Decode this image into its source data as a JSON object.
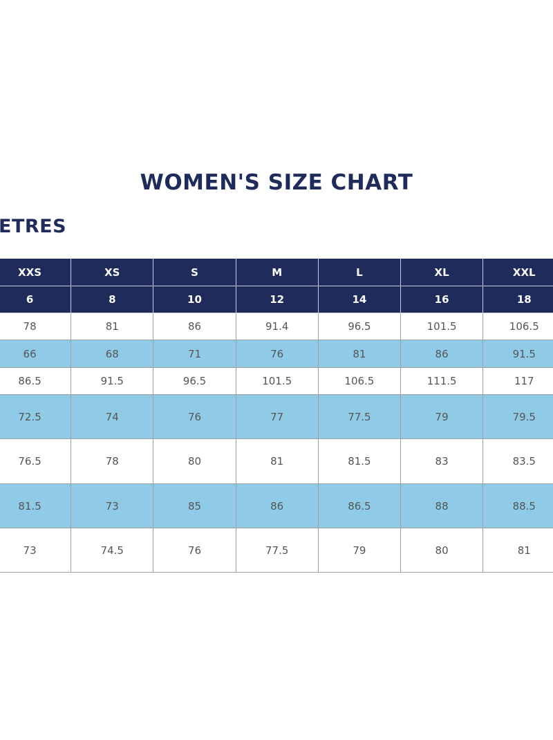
{
  "title": "WOMEN'S SIZE CHART",
  "subtitle": "ETRES",
  "table": {
    "rows": [
      [
        "XXS",
        "XS",
        "S",
        "M",
        "L",
        "XL",
        "XXL"
      ],
      [
        "6",
        "8",
        "10",
        "12",
        "14",
        "16",
        "18"
      ],
      [
        "78",
        "81",
        "86",
        "91.4",
        "96.5",
        "101.5",
        "106.5"
      ],
      [
        "66",
        "68",
        "71",
        "76",
        "81",
        "86",
        "91.5"
      ],
      [
        "86.5",
        "91.5",
        "96.5",
        "101.5",
        "106.5",
        "111.5",
        "117"
      ],
      [
        "72.5",
        "74",
        "76",
        "77",
        "77.5",
        "79",
        "79.5"
      ],
      [
        "76.5",
        "78",
        "80",
        "81",
        "81.5",
        "83",
        "83.5"
      ],
      [
        "81.5",
        "73",
        "85",
        "86",
        "86.5",
        "88",
        "88.5"
      ],
      [
        "73",
        "74.5",
        "76",
        "77.5",
        "79",
        "80",
        "81"
      ]
    ]
  }
}
